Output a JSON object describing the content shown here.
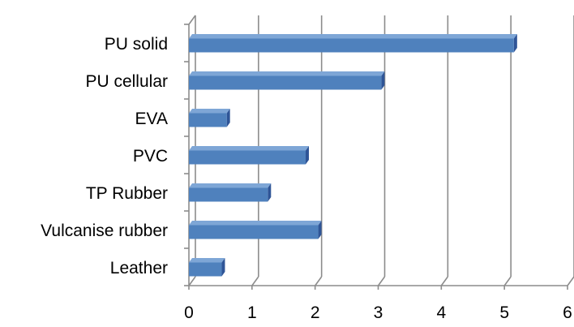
{
  "chart_data": {
    "type": "bar",
    "orientation": "horizontal",
    "style": "3d",
    "categories": [
      "PU solid",
      "PU cellular",
      "EVA",
      "PVC",
      "TP Rubber",
      "Vulcanise rubber",
      "Leather"
    ],
    "values": [
      5.15,
      3.05,
      0.6,
      1.85,
      1.25,
      2.05,
      0.52
    ],
    "xlim": [
      0,
      6
    ],
    "xticks": [
      "0",
      "1",
      "2",
      "3",
      "4",
      "5",
      "6"
    ],
    "title": "",
    "xlabel": "",
    "ylabel": "",
    "grid": "vertical",
    "legend": "none",
    "colors": {
      "bar_face": "#4f81bd",
      "bar_top": "#7ea6d6",
      "bar_side": "#2f5597",
      "gridline": "#8c8c8c"
    }
  }
}
